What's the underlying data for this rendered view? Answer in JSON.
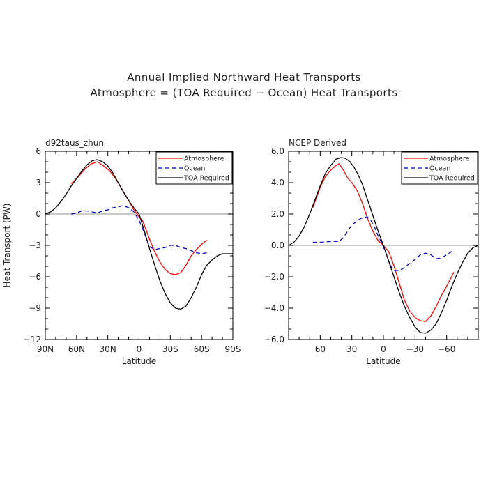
{
  "page": {
    "title_line1": "Annual Implied Northward Heat Transports",
    "title_line2": "Atmosphere = (TOA Required − Ocean) Heat Transports"
  },
  "chart_data": [
    {
      "type": "line",
      "panel_label": "d92taus_zhun",
      "xlabel": "Latitude",
      "ylabel": "Heat Transport (PW)",
      "xlim": [
        90,
        -90
      ],
      "ylim": [
        -12,
        6
      ],
      "x_ticks": [
        90,
        60,
        30,
        0,
        -30,
        -60,
        -90
      ],
      "x_tick_labels": [
        "90N",
        "60N",
        "30N",
        "0",
        "30S",
        "60S",
        "90S"
      ],
      "y_ticks": [
        6,
        3,
        0,
        -3,
        -6,
        -9,
        -12
      ],
      "y_tick_labels": [
        "6",
        "3",
        "0",
        "−3",
        "−6",
        "−9",
        "−12"
      ],
      "zero_line": true,
      "legend_position": "top-right",
      "series": [
        {
          "name": "Atmosphere",
          "color": "#ff0000",
          "dash": "solid",
          "x": [
            65,
            58,
            52,
            46,
            40,
            34,
            28,
            22,
            16,
            10,
            5,
            2,
            0,
            -3,
            -6,
            -10,
            -15,
            -20,
            -25,
            -30,
            -35,
            -40,
            -45,
            -50,
            -55,
            -60,
            -65
          ],
          "y": [
            2.9,
            3.6,
            4.3,
            4.8,
            5.0,
            4.6,
            4.1,
            3.3,
            2.3,
            1.3,
            0.4,
            0.0,
            -0.3,
            -0.6,
            -1.3,
            -2.4,
            -3.6,
            -4.6,
            -5.3,
            -5.7,
            -5.8,
            -5.6,
            -4.9,
            -4.0,
            -3.4,
            -2.9,
            -2.5
          ]
        },
        {
          "name": "Ocean",
          "color": "#0000cc",
          "dash": "dashed",
          "x": [
            65,
            60,
            55,
            50,
            45,
            40,
            35,
            30,
            25,
            20,
            15,
            10,
            5,
            0,
            -5,
            -10,
            -15,
            -20,
            -25,
            -30,
            -35,
            -40,
            -45,
            -50,
            -55,
            -60,
            -65
          ],
          "y": [
            0.0,
            0.1,
            0.3,
            0.3,
            0.2,
            0.1,
            0.3,
            0.4,
            0.6,
            0.7,
            0.8,
            0.6,
            0.2,
            -0.6,
            -1.8,
            -3.1,
            -3.4,
            -3.3,
            -3.2,
            -3.0,
            -3.0,
            -3.2,
            -3.3,
            -3.5,
            -3.7,
            -3.8,
            -3.7
          ]
        },
        {
          "name": "TOA Required",
          "color": "#000000",
          "dash": "solid",
          "x": [
            90,
            85,
            80,
            75,
            70,
            65,
            60,
            55,
            50,
            45,
            40,
            35,
            30,
            25,
            20,
            15,
            10,
            5,
            0,
            -5,
            -10,
            -15,
            -20,
            -25,
            -30,
            -35,
            -40,
            -45,
            -50,
            -55,
            -60,
            -65,
            -70,
            -75,
            -80,
            -85,
            -90
          ],
          "y": [
            0.0,
            0.2,
            0.6,
            1.2,
            1.9,
            2.7,
            3.4,
            4.1,
            4.7,
            5.1,
            5.2,
            5.0,
            4.6,
            3.9,
            3.0,
            2.1,
            1.3,
            0.6,
            0.0,
            -1.6,
            -3.3,
            -4.9,
            -6.4,
            -7.6,
            -8.5,
            -9.0,
            -9.1,
            -8.8,
            -8.0,
            -7.0,
            -5.8,
            -4.9,
            -4.4,
            -4.0,
            -3.8,
            -3.8,
            -3.8
          ]
        }
      ]
    },
    {
      "type": "line",
      "panel_label": "NCEP Derived",
      "xlabel": "Latitude",
      "ylabel": "",
      "xlim": [
        90,
        -90
      ],
      "ylim": [
        -6,
        6
      ],
      "x_ticks": [
        60,
        30,
        0,
        -30,
        -60
      ],
      "x_tick_labels": [
        "60",
        "30",
        "0",
        "−30",
        "−60"
      ],
      "y_ticks": [
        6,
        4,
        2,
        0,
        -2,
        -4,
        -6
      ],
      "y_tick_labels": [
        "6.0",
        "4.0",
        "2.0",
        "0.0",
        "−2.0",
        "−4.0",
        "−6.0"
      ],
      "zero_line": true,
      "legend_position": "top-right",
      "series": [
        {
          "name": "Atmosphere",
          "color": "#ff0000",
          "dash": "solid",
          "x": [
            67,
            60,
            55,
            50,
            45,
            42,
            38,
            34,
            30,
            25,
            20,
            15,
            10,
            5,
            0,
            -5,
            -10,
            -15,
            -20,
            -25,
            -30,
            -35,
            -40,
            -45,
            -50,
            -55,
            -60,
            -67
          ],
          "y": [
            2.4,
            3.7,
            4.4,
            4.8,
            5.1,
            5.2,
            4.8,
            4.3,
            4.0,
            3.5,
            2.7,
            1.7,
            0.9,
            0.3,
            0.0,
            -0.4,
            -1.3,
            -2.4,
            -3.5,
            -4.2,
            -4.6,
            -4.8,
            -4.85,
            -4.5,
            -3.9,
            -3.2,
            -2.6,
            -1.7
          ]
        },
        {
          "name": "Ocean",
          "color": "#0000cc",
          "dash": "dashed",
          "x": [
            67,
            60,
            50,
            42,
            38,
            34,
            30,
            26,
            22,
            18,
            15,
            12,
            8,
            5,
            2,
            0,
            -3,
            -6,
            -10,
            -14,
            -18,
            -22,
            -26,
            -30,
            -35,
            -40,
            -45,
            -50,
            -55,
            -60,
            -67
          ],
          "y": [
            0.2,
            0.2,
            0.25,
            0.25,
            0.5,
            0.9,
            1.3,
            1.5,
            1.7,
            1.8,
            1.8,
            1.6,
            1.1,
            0.6,
            0.2,
            -0.1,
            -0.6,
            -1.2,
            -1.6,
            -1.6,
            -1.5,
            -1.3,
            -1.1,
            -0.9,
            -0.6,
            -0.5,
            -0.6,
            -0.85,
            -0.8,
            -0.6,
            -0.3
          ]
        },
        {
          "name": "TOA Required",
          "color": "#000000",
          "dash": "solid",
          "x": [
            90,
            85,
            80,
            75,
            70,
            65,
            60,
            55,
            50,
            45,
            40,
            36,
            32,
            28,
            24,
            20,
            15,
            10,
            5,
            0,
            -5,
            -10,
            -15,
            -20,
            -25,
            -30,
            -35,
            -40,
            -45,
            -50,
            -55,
            -60,
            -65,
            -70,
            -75,
            -80,
            -85,
            -90
          ],
          "y": [
            0.0,
            0.2,
            0.6,
            1.2,
            2.0,
            2.9,
            3.8,
            4.6,
            5.1,
            5.5,
            5.6,
            5.55,
            5.35,
            5.0,
            4.5,
            3.9,
            2.9,
            1.9,
            0.9,
            0.0,
            -1.0,
            -2.0,
            -3.0,
            -3.9,
            -4.6,
            -5.2,
            -5.55,
            -5.6,
            -5.4,
            -5.0,
            -4.3,
            -3.5,
            -2.6,
            -1.8,
            -1.1,
            -0.5,
            -0.15,
            0.0
          ]
        }
      ]
    }
  ]
}
